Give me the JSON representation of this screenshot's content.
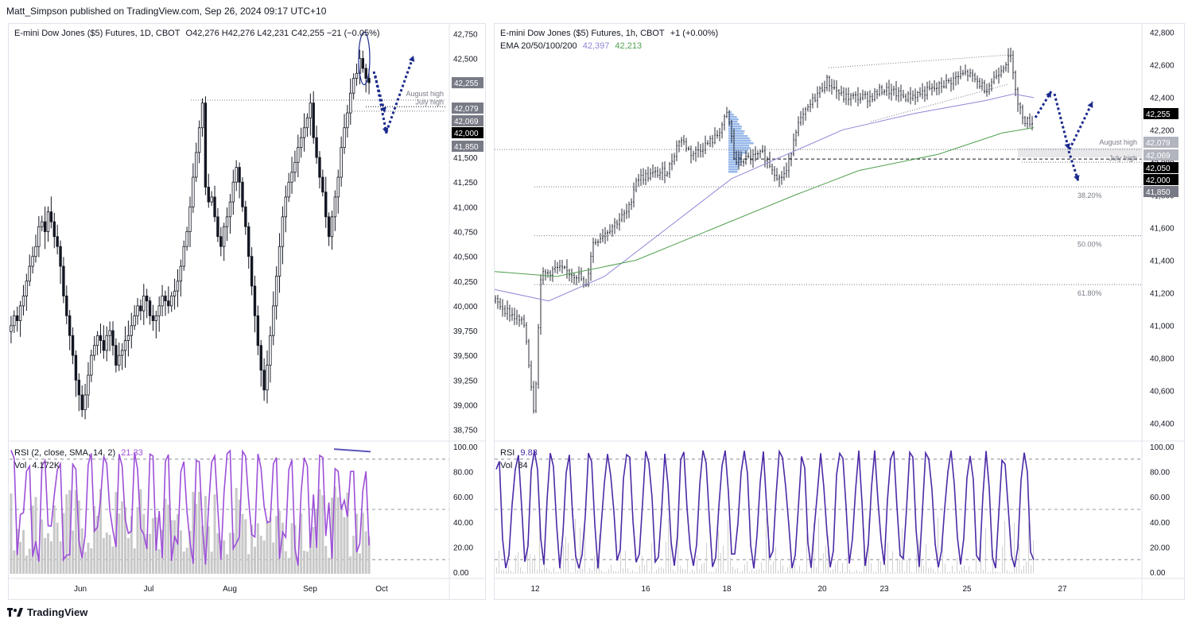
{
  "publisher": "Matt_Simpson published on TradingView.com, Sep 26, 2024 09:17 UTC+10",
  "brand": "TradingView",
  "colors": {
    "up_candle": "#131722",
    "grid": "#f0f3fa",
    "rsi_left": "#9c4fd8",
    "rsi_right": "#4b2aa6",
    "ema_blue": "#8e86d6",
    "ema_green": "#4fa04f",
    "arrow": "#1b2a8c",
    "volume_left": "#c8c8c8",
    "volume_right": "#d0d0d0",
    "tag_dark": "#000000",
    "tag_gray": "#787b86",
    "tag_light": "#b2b5be"
  },
  "left_chart": {
    "legend": {
      "symbol": "E-mini Dow Jones ($5) Futures, 1D, CBOT",
      "ohlc": "O42,276  H42,276  L42,231  C42,255  −21 (−0.05%)"
    },
    "y_ticks": [
      "42,750",
      "42,500",
      "42,250",
      "42,000",
      "41,750",
      "41,500",
      "41,250",
      "41,000",
      "40,750",
      "40,500",
      "40,250",
      "40,000",
      "39,750",
      "39,500",
      "39,250",
      "39,000",
      "38,750"
    ],
    "price_tags": [
      {
        "text": "42,255",
        "style": "gray"
      },
      {
        "text": "42,079",
        "style": "gray"
      },
      {
        "text": "42,069",
        "style": "gray"
      },
      {
        "text": "42,000",
        "style": "dark"
      },
      {
        "text": "41,850",
        "style": "gray"
      }
    ],
    "annotations": [
      "August high",
      "July high"
    ],
    "x_ticks": [
      "Jun",
      "Jul",
      "Aug",
      "Sep",
      "Oct"
    ],
    "rsi_legend": {
      "name": "RSI (2, close, SMA, 14, 2)",
      "value": "21.33"
    },
    "vol_legend": {
      "name": "Vol",
      "value": "4.172K"
    },
    "rsi_ticks": [
      "100.00",
      "80.00",
      "60.00",
      "40.00",
      "20.00",
      "0.00"
    ]
  },
  "right_chart": {
    "legend": {
      "symbol": "E-mini Dow Jones ($5) Futures, 1h, CBOT",
      "change": "+1 (+0.00%)",
      "ema_label": "EMA 20/50/100/200",
      "ema_value_1": "42,397",
      "ema_value_2": "42,213"
    },
    "y_ticks": [
      "42,800",
      "42,600",
      "42,400",
      "42,200",
      "42,000",
      "41,800",
      "41,600",
      "41,400",
      "41,200",
      "41,000",
      "40,800",
      "40,600",
      "40,400"
    ],
    "price_tags": [
      {
        "text": "42,255",
        "style": "dark"
      },
      {
        "text": "42,079",
        "style": "light"
      },
      {
        "text": "42,069",
        "style": "light"
      },
      {
        "text": "42,050",
        "style": "dark"
      },
      {
        "text": "42,000",
        "style": "dark"
      },
      {
        "text": "41,850",
        "style": "gray"
      }
    ],
    "annotations": [
      "August high",
      "July high"
    ],
    "fib_levels": [
      "38.20%",
      "50.00%",
      "61.80%"
    ],
    "x_ticks": [
      "12",
      "16",
      "18",
      "20",
      "23",
      "25",
      "27"
    ],
    "rsi_legend": {
      "name": "RSI",
      "value": "9.83"
    },
    "vol_legend": {
      "name": "Vol",
      "value": "84"
    },
    "rsi_ticks": [
      "100.00",
      "80.00",
      "60.00",
      "40.00",
      "20.00",
      "0.00"
    ]
  },
  "chart_data": [
    {
      "type": "candlestick",
      "title": "E-mini Dow Jones ($5) Futures, 1D, CBOT",
      "ylim": [
        38650,
        42850
      ],
      "x_ticks": [
        "Jun",
        "Jul",
        "Aug",
        "Sep",
        "Oct"
      ],
      "closes": [
        39800,
        39900,
        39850,
        40000,
        40100,
        40250,
        40400,
        40500,
        40600,
        40800,
        40850,
        40750,
        40950,
        40850,
        40700,
        40600,
        40400,
        40100,
        39900,
        39700,
        39500,
        39250,
        39100,
        38950,
        39100,
        39300,
        39500,
        39600,
        39700,
        39650,
        39550,
        39700,
        39750,
        39600,
        39400,
        39500,
        39550,
        39650,
        39700,
        39800,
        39900,
        40000,
        39950,
        40100,
        40050,
        39900,
        39850,
        39900,
        40000,
        40100,
        40050,
        40000,
        40100,
        40150,
        40250,
        40400,
        40600,
        40750,
        41000,
        41300,
        41550,
        41800,
        42050,
        41200,
        41050,
        41100,
        40900,
        40700,
        40600,
        40800,
        40900,
        41050,
        41250,
        41400,
        41250,
        41000,
        40800,
        40500,
        40200,
        39900,
        39600,
        39350,
        39150,
        39400,
        39700,
        40000,
        40300,
        40600,
        40900,
        41100,
        41250,
        41350,
        41450,
        41600,
        41700,
        41800,
        41900,
        42050,
        41700,
        41500,
        41300,
        41150,
        40900,
        40700,
        40900,
        41100,
        41300,
        41600,
        41800,
        41950,
        42150,
        42300,
        42350,
        42500,
        42400,
        42300,
        42255
      ],
      "annotations": [
        "August high",
        "July high"
      ],
      "levels": [
        42079,
        42069,
        42000,
        41850
      ],
      "current_price": 42255
    },
    {
      "type": "line",
      "title": "RSI (2, close, SMA, 14, 2)",
      "ylim": [
        0,
        100
      ],
      "last_value": 21.33
    },
    {
      "type": "candlestick",
      "title": "E-mini Dow Jones ($5) Futures, 1h, CBOT",
      "ylim": [
        40300,
        42850
      ],
      "x_ticks": [
        "12",
        "16",
        "18",
        "20",
        "23",
        "25",
        "27"
      ],
      "series": [
        {
          "name": "EMA 20/50/100/200",
          "value": 42397
        },
        {
          "value": 42213
        }
      ],
      "levels": [
        42079,
        42069,
        42050,
        42000,
        41850
      ],
      "fibonacci": [
        {
          "label": "38.20%",
          "price": 41850
        },
        {
          "label": "50.00%",
          "price": 41550
        },
        {
          "label": "61.80%",
          "price": 41250
        }
      ],
      "current_price": 42255
    },
    {
      "type": "line",
      "title": "RSI",
      "ylim": [
        0,
        100
      ],
      "last_value": 9.83
    }
  ]
}
